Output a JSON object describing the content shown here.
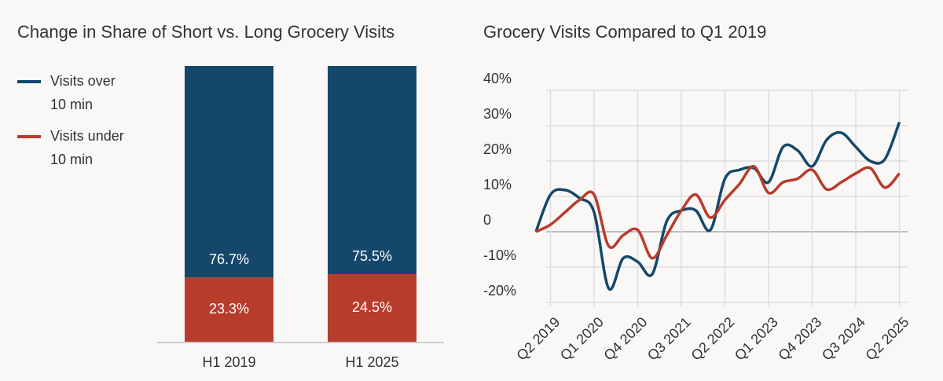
{
  "chart_data": [
    {
      "type": "bar",
      "stacked": true,
      "title": "Change in Share of Short vs. Long Grocery Visits",
      "categories": [
        "H1 2019",
        "H1 2025"
      ],
      "legend": "left",
      "series": [
        {
          "name": "Visits over 10 min",
          "color": "#15476a",
          "values": [
            76.7,
            75.5
          ],
          "value_labels": [
            "76.7%",
            "75.5%"
          ]
        },
        {
          "name": "Visits under 10 min",
          "color": "#b83c2b",
          "values": [
            23.3,
            24.5
          ],
          "value_labels": [
            "23.3%",
            "24.5%"
          ]
        }
      ]
    },
    {
      "type": "line",
      "title": "Grocery Visits Compared to Q1 2019",
      "categories": [
        null,
        "Q2 2019",
        null,
        null,
        "Q1 2020",
        null,
        null,
        "Q4 2020",
        null,
        null,
        "Q3 2021",
        null,
        null,
        "Q2 2022",
        null,
        null,
        "Q1 2023",
        null,
        null,
        "Q4 2023",
        null,
        null,
        "Q3 2024",
        null,
        null,
        "Q2 2025"
      ],
      "ylim": [
        -20,
        40
      ],
      "yticks": [
        {
          "value": -20,
          "label": "-20%"
        },
        {
          "value": -10,
          "label": "-10%"
        },
        0,
        {
          "value": 10,
          "label": "10%"
        },
        {
          "value": 20,
          "label": "20%"
        },
        {
          "value": 30,
          "label": "30%"
        },
        {
          "value": 40,
          "label": "40%"
        }
      ],
      "grid": true,
      "series": [
        {
          "name": "Visits over 10 min",
          "color": "#15476a",
          "values": [
            0,
            10.5,
            11.8,
            9.5,
            5.5,
            -16,
            -7.5,
            -8.5,
            -12,
            3,
            6,
            6,
            0.5,
            15,
            17.5,
            18,
            14,
            24,
            23,
            18.5,
            26,
            28,
            24,
            20,
            20.5,
            31
          ]
        },
        {
          "name": "Visits under 10 min",
          "color": "#b83c2b",
          "values": [
            0,
            2,
            5.5,
            9,
            10.5,
            -4,
            -1,
            0.5,
            -7.5,
            -1,
            6,
            10.5,
            4,
            9,
            13.5,
            18.5,
            11,
            14,
            15,
            17.5,
            12,
            14,
            16.5,
            18,
            12.5,
            16.5
          ]
        }
      ]
    }
  ]
}
